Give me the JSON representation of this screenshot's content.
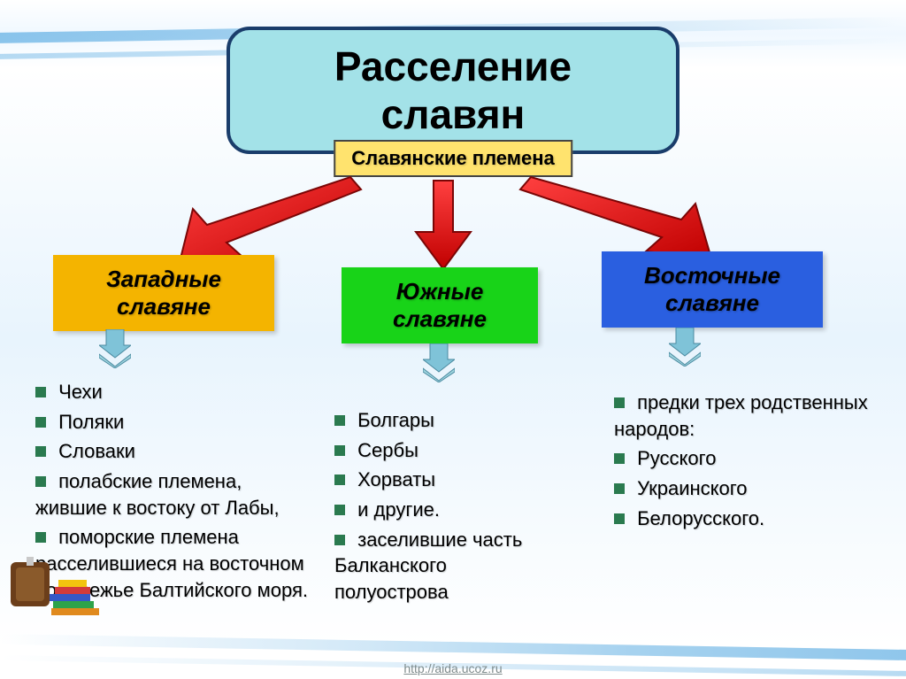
{
  "title": "Расселение славян",
  "root": {
    "label": "Славянские племена",
    "bg_color": "#ffe36e",
    "border_color": "#444444"
  },
  "title_box": {
    "bg_color": "#a3e2e8",
    "border_color": "#1a3d6b"
  },
  "arrows": {
    "fill": "#e81010",
    "stroke": "#8a0707"
  },
  "branches": [
    {
      "key": "west",
      "label": "Западные\nславяне",
      "bg_color": "#f4b400",
      "chev_colors": [
        "#6fb7d6",
        "#93d0dc"
      ],
      "bullet_color": "#2a7a4f",
      "items": [
        "Чехи",
        "Поляки",
        "Словаки",
        "полабские племена, жившие к востоку от Лабы,",
        "поморские племена расселившиеся на восточном побережье Балтийского моря."
      ]
    },
    {
      "key": "south",
      "label": "Южные\nславяне",
      "bg_color": "#18d318",
      "chev_colors": [
        "#6fb7d6",
        "#93d0dc"
      ],
      "bullet_color": "#2a7a4f",
      "items": [
        "Болгары",
        "Сербы",
        "Хорваты",
        "и другие.",
        "заселившие часть Балканского полуострова"
      ]
    },
    {
      "key": "east",
      "label": "Восточные\nславяне",
      "bg_color": "#2a5fe0",
      "chev_colors": [
        "#6fb7d6",
        "#93d0dc"
      ],
      "bullet_color": "#2a7a4f",
      "items_intro": "предки трех родственных народов:",
      "items": [
        "Русского",
        "Украинского",
        "Белорусского."
      ]
    }
  ],
  "footer_url": "http://aida.ucoz.ru"
}
